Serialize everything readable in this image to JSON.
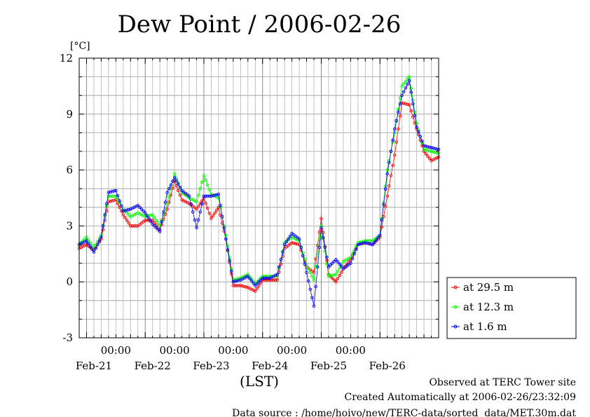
{
  "chart_data": {
    "type": "line",
    "title": "Dew Point / 2006-02-26",
    "ylabel": "[°C]",
    "xlabel": "(LST)",
    "ylim": [
      -3,
      12
    ],
    "yticks": [
      -3,
      0,
      3,
      6,
      9,
      12
    ],
    "x_range": [
      "2006-02-20 21:00",
      "2006-02-27 00:00"
    ],
    "x_time_labels": [
      "00:00",
      "00:00",
      "00:00",
      "00:00",
      "00:00"
    ],
    "x_date_labels": [
      "Feb-21",
      "Feb-22",
      "Feb-23",
      "Feb-24",
      "Feb-25",
      "Feb-26"
    ],
    "grid": true,
    "legend_position": "bottom-right outside",
    "series": [
      {
        "name": "at 29.5 m",
        "color": "#ff0000",
        "x": [
          "2006-02-20 21:00",
          "2006-02-21 00:00",
          "2006-02-21 03:00",
          "2006-02-21 06:00",
          "2006-02-21 09:00",
          "2006-02-21 12:00",
          "2006-02-21 15:00",
          "2006-02-21 18:00",
          "2006-02-21 21:00",
          "2006-02-22 00:00",
          "2006-02-22 03:00",
          "2006-02-22 06:00",
          "2006-02-22 09:00",
          "2006-02-22 12:00",
          "2006-02-22 15:00",
          "2006-02-22 18:00",
          "2006-02-22 21:00",
          "2006-02-23 00:00",
          "2006-02-23 03:00",
          "2006-02-23 06:00",
          "2006-02-23 09:00",
          "2006-02-23 12:00",
          "2006-02-23 15:00",
          "2006-02-23 18:00",
          "2006-02-23 21:00",
          "2006-02-24 00:00",
          "2006-02-24 03:00",
          "2006-02-24 06:00",
          "2006-02-24 09:00",
          "2006-02-24 12:00",
          "2006-02-24 15:00",
          "2006-02-24 18:00",
          "2006-02-24 21:00",
          "2006-02-25 00:00",
          "2006-02-25 03:00",
          "2006-02-25 06:00",
          "2006-02-25 09:00",
          "2006-02-25 12:00",
          "2006-02-25 15:00",
          "2006-02-25 18:00",
          "2006-02-25 21:00",
          "2006-02-26 00:00",
          "2006-02-26 03:00",
          "2006-02-26 06:00",
          "2006-02-26 09:00",
          "2006-02-26 12:00",
          "2006-02-26 15:00",
          "2006-02-26 18:00",
          "2006-02-26 21:00",
          "2006-02-27 00:00"
        ],
        "values": [
          1.8,
          2.0,
          1.7,
          2.3,
          4.3,
          4.4,
          3.6,
          3.0,
          3.0,
          3.3,
          3.3,
          2.8,
          3.9,
          5.4,
          4.4,
          4.2,
          3.9,
          4.5,
          3.4,
          4.0,
          2.3,
          -0.2,
          -0.2,
          -0.3,
          -0.5,
          0.1,
          0.1,
          0.1,
          1.8,
          2.1,
          2.0,
          0.8,
          0.5,
          3.4,
          0.4,
          0.0,
          0.7,
          1.2,
          2.0,
          2.1,
          2.0,
          2.4,
          4.6,
          6.8,
          9.6,
          9.5,
          8.2,
          7.0,
          6.5,
          6.7
        ]
      },
      {
        "name": "at 12.3 m",
        "color": "#00ff00",
        "x": [
          "2006-02-20 21:00",
          "2006-02-21 00:00",
          "2006-02-21 03:00",
          "2006-02-21 06:00",
          "2006-02-21 09:00",
          "2006-02-21 12:00",
          "2006-02-21 15:00",
          "2006-02-21 18:00",
          "2006-02-21 21:00",
          "2006-02-22 00:00",
          "2006-02-22 03:00",
          "2006-02-22 06:00",
          "2006-02-22 09:00",
          "2006-02-22 12:00",
          "2006-02-22 15:00",
          "2006-02-22 18:00",
          "2006-02-22 21:00",
          "2006-02-23 00:00",
          "2006-02-23 03:00",
          "2006-02-23 06:00",
          "2006-02-23 09:00",
          "2006-02-23 12:00",
          "2006-02-23 15:00",
          "2006-02-23 18:00",
          "2006-02-23 21:00",
          "2006-02-24 00:00",
          "2006-02-24 03:00",
          "2006-02-24 06:00",
          "2006-02-24 09:00",
          "2006-02-24 12:00",
          "2006-02-24 15:00",
          "2006-02-24 18:00",
          "2006-02-24 21:00",
          "2006-02-25 00:00",
          "2006-02-25 03:00",
          "2006-02-25 06:00",
          "2006-02-25 09:00",
          "2006-02-25 12:00",
          "2006-02-25 15:00",
          "2006-02-25 18:00",
          "2006-02-25 21:00",
          "2006-02-26 00:00",
          "2006-02-26 03:00",
          "2006-02-26 06:00",
          "2006-02-26 09:00",
          "2006-02-26 12:00",
          "2006-02-26 15:00",
          "2006-02-26 18:00",
          "2006-02-26 21:00",
          "2006-02-27 00:00"
        ],
        "values": [
          2.0,
          2.4,
          1.8,
          2.5,
          4.6,
          4.6,
          3.9,
          3.5,
          3.7,
          3.5,
          3.6,
          3.0,
          4.2,
          5.8,
          4.8,
          4.5,
          4.3,
          5.7,
          4.7,
          4.5,
          2.5,
          0.1,
          0.2,
          0.4,
          -0.1,
          0.3,
          0.3,
          0.3,
          2.1,
          2.4,
          2.2,
          0.9,
          0.1,
          3.0,
          0.3,
          0.4,
          1.1,
          1.3,
          2.1,
          2.2,
          2.2,
          2.5,
          6.0,
          8.0,
          10.5,
          11.0,
          8.5,
          7.1,
          7.0,
          6.9
        ]
      },
      {
        "name": "at 1.6 m",
        "color": "#0000ff",
        "x": [
          "2006-02-20 21:00",
          "2006-02-21 00:00",
          "2006-02-21 03:00",
          "2006-02-21 06:00",
          "2006-02-21 09:00",
          "2006-02-21 12:00",
          "2006-02-21 15:00",
          "2006-02-21 18:00",
          "2006-02-21 21:00",
          "2006-02-22 00:00",
          "2006-02-22 03:00",
          "2006-02-22 06:00",
          "2006-02-22 09:00",
          "2006-02-22 12:00",
          "2006-02-22 15:00",
          "2006-02-22 18:00",
          "2006-02-22 21:00",
          "2006-02-23 00:00",
          "2006-02-23 03:00",
          "2006-02-23 06:00",
          "2006-02-23 09:00",
          "2006-02-23 12:00",
          "2006-02-23 15:00",
          "2006-02-23 18:00",
          "2006-02-23 21:00",
          "2006-02-24 00:00",
          "2006-02-24 03:00",
          "2006-02-24 06:00",
          "2006-02-24 09:00",
          "2006-02-24 12:00",
          "2006-02-24 15:00",
          "2006-02-24 18:00",
          "2006-02-24 21:00",
          "2006-02-25 00:00",
          "2006-02-25 03:00",
          "2006-02-25 06:00",
          "2006-02-25 09:00",
          "2006-02-25 12:00",
          "2006-02-25 15:00",
          "2006-02-25 18:00",
          "2006-02-25 21:00",
          "2006-02-26 00:00",
          "2006-02-26 03:00",
          "2006-02-26 06:00",
          "2006-02-26 09:00",
          "2006-02-26 12:00",
          "2006-02-26 15:00",
          "2006-02-26 18:00",
          "2006-02-26 21:00",
          "2006-02-27 00:00"
        ],
        "values": [
          2.0,
          2.2,
          1.6,
          2.4,
          4.8,
          4.9,
          3.8,
          3.9,
          4.1,
          3.7,
          3.1,
          2.7,
          4.8,
          5.6,
          4.9,
          4.6,
          2.9,
          4.6,
          4.6,
          4.7,
          2.3,
          0.0,
          0.1,
          0.3,
          -0.2,
          0.2,
          0.2,
          0.4,
          2.0,
          2.6,
          2.3,
          0.5,
          -1.3,
          2.9,
          0.8,
          1.2,
          0.7,
          1.0,
          2.0,
          2.1,
          2.0,
          2.5,
          5.8,
          8.2,
          10.0,
          10.8,
          8.3,
          7.3,
          7.2,
          7.1
        ]
      }
    ]
  },
  "footer": {
    "line1": "Observed at TERC Tower site",
    "line2": "Created Automatically at 2006-02-26/23:32:09",
    "line3": "Data source : /home/hoivo/new/TERC-data/sorted  data/MET.30m.dat"
  }
}
